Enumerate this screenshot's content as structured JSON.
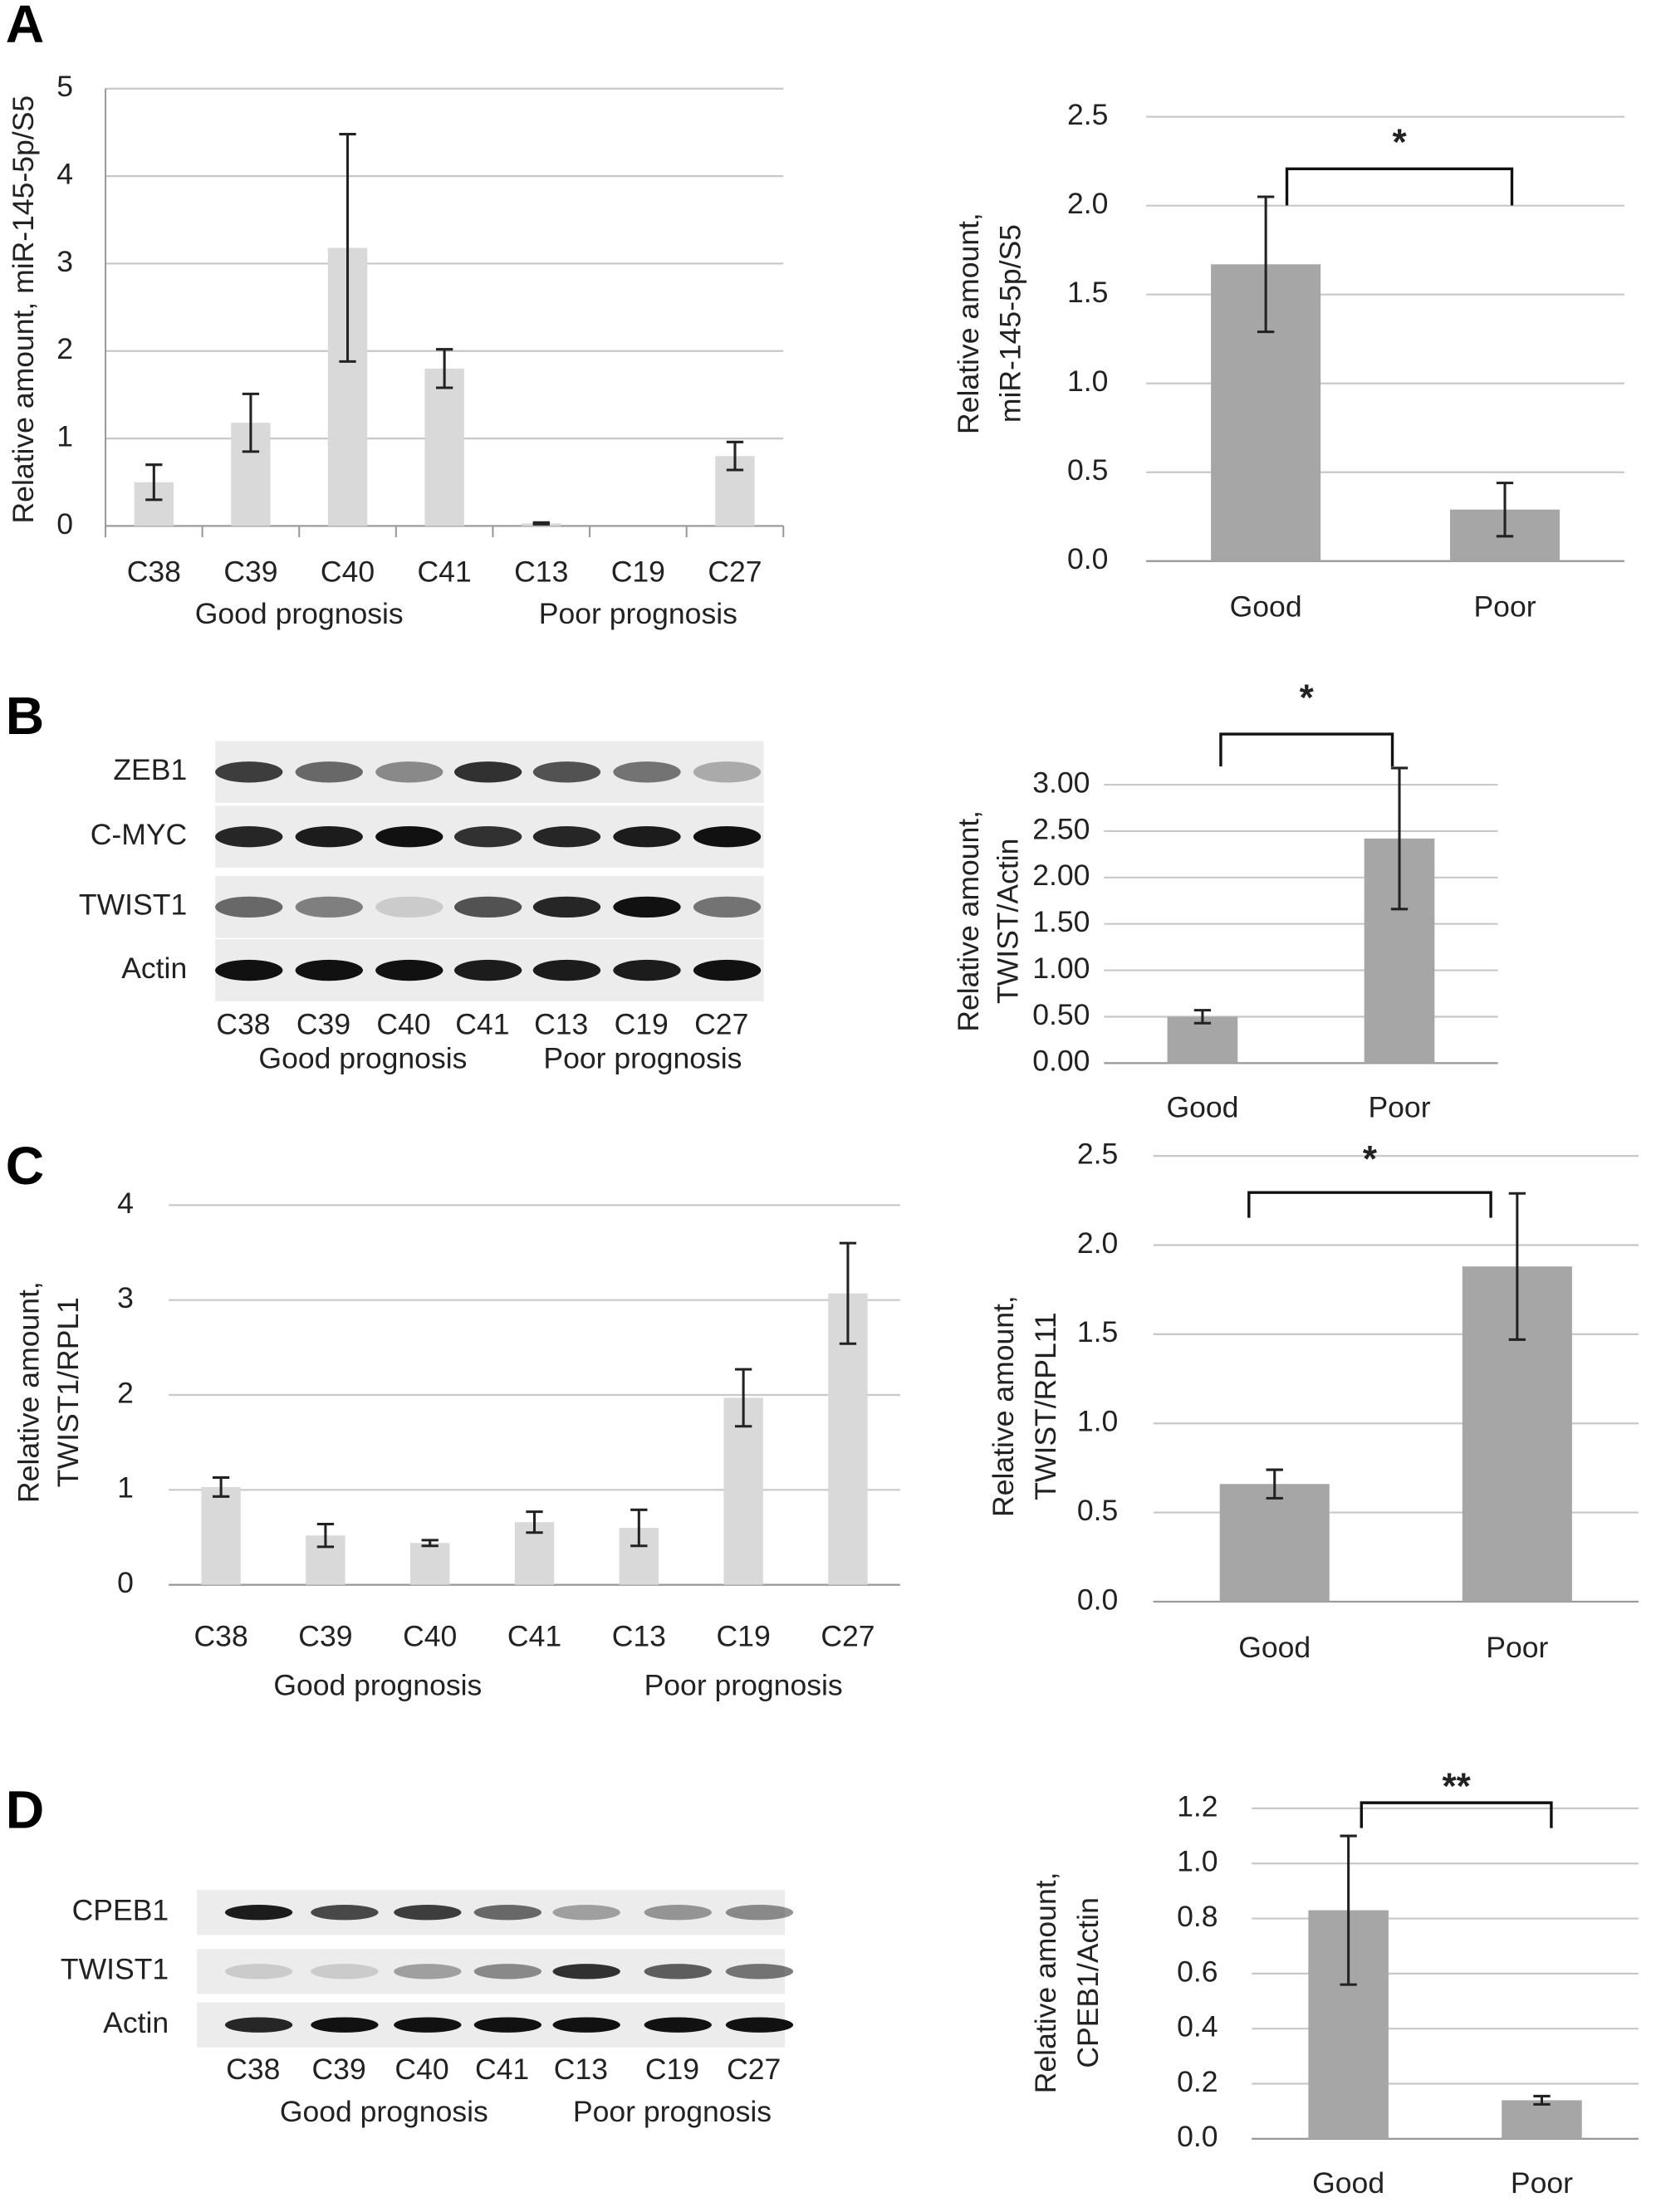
{
  "panel_labels": [
    "A",
    "B",
    "C",
    "D"
  ],
  "blots": [
    {
      "rows": [
        "ZEB1",
        "C-MYC",
        "TWIST1",
        "Actin"
      ],
      "lanes": [
        "C38",
        "C39",
        "C40",
        "C41",
        "C13",
        "C19",
        "C27"
      ],
      "groups": [
        "Good prognosis",
        "Poor prognosis"
      ]
    },
    {
      "rows": [
        "CPEB1",
        "TWIST1",
        "Actin"
      ],
      "lanes": [
        "C38",
        "C39",
        "C40",
        "C41",
        "C13",
        "C19",
        "C27"
      ],
      "groups": [
        "Good prognosis",
        "Poor prognosis"
      ]
    }
  ],
  "chart_data": [
    {
      "type": "bar",
      "ylabel": [
        "Relative amount, miR-145-5p/S5"
      ],
      "categories": [
        "C38",
        "C39",
        "C40",
        "C41",
        "C13",
        "C19",
        "C27"
      ],
      "groups": [
        "Good prognosis",
        "Poor prognosis"
      ],
      "values": [
        0.5,
        1.18,
        3.18,
        1.8,
        0.03,
        0,
        0.8
      ],
      "errors": [
        0.2,
        0.33,
        1.3,
        0.22,
        0.01,
        0,
        0.16
      ],
      "color": "#d9d9d9",
      "ylim": [
        0,
        5
      ],
      "yticks": [
        0,
        1,
        2,
        3,
        4,
        5
      ],
      "grid": true
    },
    {
      "type": "bar",
      "ylabel": [
        "Relative amount,",
        "miR-145-5p/S5"
      ],
      "annotation": "*",
      "categories": [
        "Good",
        "Poor"
      ],
      "values": [
        1.67,
        0.29
      ],
      "errors": [
        0.38,
        0.15
      ],
      "color": "#a6a6a6",
      "ylim": [
        0,
        2.5
      ],
      "yticks": [
        {
          "value": 0,
          "label": "0.0"
        },
        {
          "value": 0.5,
          "label": "0.5"
        },
        {
          "value": 1,
          "label": "1.0"
        },
        {
          "value": 1.5,
          "label": "1.5"
        },
        {
          "value": 2,
          "label": "2.0"
        },
        {
          "value": 2.5,
          "label": "2.5"
        }
      ],
      "grid": true
    },
    {
      "type": "bar",
      "ylabel": [
        "Relative amount,",
        "TWIST/Actin"
      ],
      "annotation": "*",
      "categories": [
        "Good",
        "Poor"
      ],
      "values": [
        0.5,
        2.42
      ],
      "errors": [
        0.07,
        0.76
      ],
      "color": "#a6a6a6",
      "ylim": [
        0,
        3
      ],
      "yticks": [
        {
          "value": 0,
          "label": "0.00"
        },
        {
          "value": 0.5,
          "label": "0.50"
        },
        {
          "value": 1,
          "label": "1.00"
        },
        {
          "value": 1.5,
          "label": "1.50"
        },
        {
          "value": 2,
          "label": "2.00"
        },
        {
          "value": 2.5,
          "label": "2.50"
        },
        {
          "value": 3,
          "label": "3.00"
        }
      ],
      "grid": true
    },
    {
      "type": "bar",
      "ylabel": [
        "Relative amount,",
        "TWIST1/RPL1"
      ],
      "categories": [
        "C38",
        "C39",
        "C40",
        "C41",
        "C13",
        "C19",
        "C27"
      ],
      "groups": [
        "Good prognosis",
        "Poor prognosis"
      ],
      "values": [
        1.03,
        0.52,
        0.44,
        0.66,
        0.6,
        1.97,
        3.07
      ],
      "errors": [
        0.1,
        0.12,
        0.03,
        0.11,
        0.19,
        0.3,
        0.53
      ],
      "color": "#d9d9d9",
      "ylim": [
        0,
        4
      ],
      "yticks": [
        0,
        1,
        2,
        3,
        4
      ],
      "grid": true
    },
    {
      "type": "bar",
      "ylabel": [
        "Relative amount,",
        "TWIST/RPL11"
      ],
      "annotation": "*",
      "categories": [
        "Good",
        "Poor"
      ],
      "values": [
        0.66,
        1.88
      ],
      "errors": [
        0.08,
        0.41
      ],
      "color": "#a6a6a6",
      "ylim": [
        0,
        2.5
      ],
      "yticks": [
        {
          "value": 0,
          "label": "0.0"
        },
        {
          "value": 0.5,
          "label": "0.5"
        },
        {
          "value": 1,
          "label": "1.0"
        },
        {
          "value": 1.5,
          "label": "1.5"
        },
        {
          "value": 2,
          "label": "2.0"
        },
        {
          "value": 2.5,
          "label": "2.5"
        }
      ],
      "grid": true
    },
    {
      "type": "bar",
      "ylabel": [
        "Relative amount,",
        "CPEB1/Actin"
      ],
      "annotation": "**",
      "categories": [
        "Good",
        "Poor"
      ],
      "values": [
        0.83,
        0.14
      ],
      "errors": [
        0.27,
        0.015
      ],
      "color": "#a6a6a6",
      "ylim": [
        0,
        1.2
      ],
      "yticks": [
        {
          "value": 0,
          "label": "0.0"
        },
        {
          "value": 0.2,
          "label": "0.2"
        },
        {
          "value": 0.4,
          "label": "0.4"
        },
        {
          "value": 0.6,
          "label": "0.6"
        },
        {
          "value": 0.8,
          "label": "0.8"
        },
        {
          "value": 1,
          "label": "1.0"
        },
        {
          "value": 1.2,
          "label": "1.2"
        }
      ],
      "grid": true
    }
  ]
}
